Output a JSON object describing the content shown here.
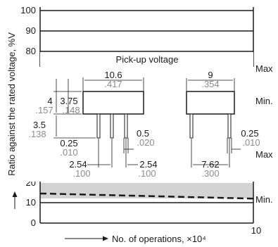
{
  "chart": {
    "ylabel": "Ratio against the rated voltage, %V",
    "xlabel": "No. of operations, ×10⁴",
    "y_ticks": [
      "100",
      "90",
      "80",
      "20",
      "10",
      "0"
    ],
    "x_ticks": [
      "10"
    ],
    "annotations": {
      "pickup": "Pick-up voltage",
      "max1": "Max",
      "min1": "Min.",
      "max2": "Max",
      "min2": "Min."
    }
  },
  "dimensions": {
    "length_mm": "10.6",
    "length_in": ".417",
    "height_mm": "4",
    "height_in": ".157",
    "body_mm": "3.75",
    "body_in": ".148",
    "pin_len_mm": "3.5",
    "pin_len_in": ".138",
    "pin_thk_mm": "0.25",
    "pin_thk_in": ".010",
    "pin_w_mm": "0.5",
    "pin_w_in": ".020",
    "pitch1_mm": "2.54",
    "pitch1_in": ".100",
    "pitch2_mm": "2.54",
    "pitch2_in": ".100",
    "width_mm": "9",
    "width_in": ".354",
    "side_pin_mm": "0.25",
    "side_pin_in": ".010",
    "row_mm": "7.62",
    "row_in": ".300"
  },
  "chart_data": {
    "type": "line",
    "xlabel": "No. of operations, ×10⁴",
    "ylabel": "Ratio against the rated voltage, %V",
    "xlim": [
      0,
      10
    ],
    "series": [
      {
        "x": [
          0,
          10
        ],
        "y": [
          14.5,
          12
        ]
      }
    ],
    "hlines": [
      100,
      90,
      80,
      10
    ],
    "shaded_band": [
      12,
      20
    ]
  }
}
